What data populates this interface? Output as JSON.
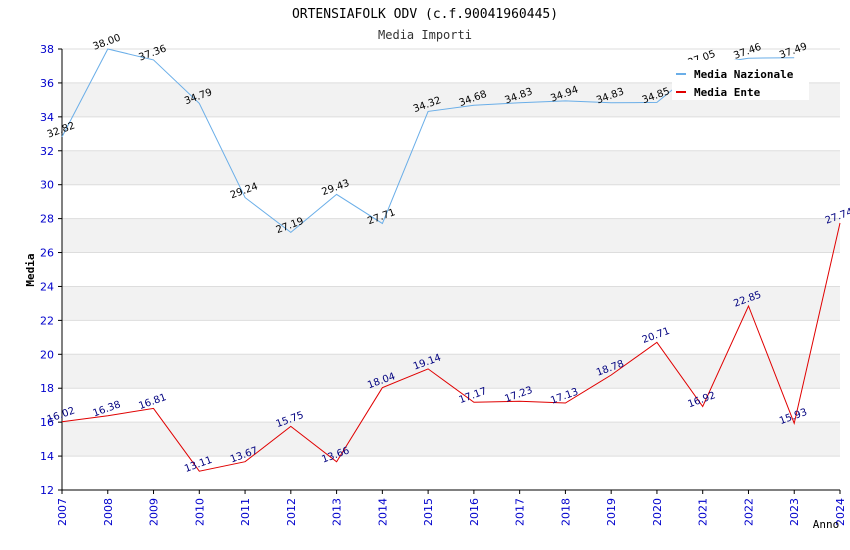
{
  "chart_data": {
    "type": "line",
    "title": "ORTENSIAFOLK ODV (c.f.90041960445)",
    "subtitle": "Media Importi",
    "xlabel": "Anno",
    "ylabel": "Media",
    "ylim": [
      12,
      38
    ],
    "yticks": [
      "12",
      "14",
      "16",
      "18",
      "20",
      "22",
      "24",
      "26",
      "28",
      "30",
      "32",
      "34",
      "36",
      "38"
    ],
    "categories": [
      "2007",
      "2008",
      "2009",
      "2010",
      "2011",
      "2012",
      "2013",
      "2014",
      "2015",
      "2016",
      "2017",
      "2018",
      "2019",
      "2020",
      "2021",
      "2022",
      "2023",
      "2024"
    ],
    "grid": true,
    "legend_position": "top-right",
    "series": [
      {
        "name": "Media Nazionale",
        "color": "#6aaee8",
        "values": [
          32.82,
          38.0,
          37.36,
          34.79,
          29.24,
          27.19,
          29.43,
          27.71,
          34.32,
          34.68,
          34.83,
          34.94,
          34.83,
          34.85,
          37.05,
          37.46,
          37.49,
          null
        ],
        "labels": [
          "32.82",
          "38.00",
          "37.36",
          "34.79",
          "29.24",
          "27.19",
          "29.43",
          "27.71",
          "34.32",
          "34.68",
          "34.83",
          "34.94",
          "34.83",
          "34.85",
          "37.05",
          "37.46",
          "37.49",
          ""
        ]
      },
      {
        "name": "Media Ente",
        "color": "#e00000",
        "values": [
          16.02,
          16.38,
          16.81,
          13.11,
          13.67,
          15.75,
          13.66,
          18.04,
          19.14,
          17.17,
          17.23,
          17.13,
          18.78,
          20.71,
          16.92,
          22.85,
          15.93,
          27.74
        ],
        "labels": [
          "16.02",
          "16.38",
          "16.81",
          "13.11",
          "13.67",
          "15.75",
          "13.66",
          "18.04",
          "19.14",
          "17.17",
          "17.23",
          "17.13",
          "18.78",
          "20.71",
          "16.92",
          "22.85",
          "15.93",
          "27.74"
        ]
      }
    ]
  }
}
